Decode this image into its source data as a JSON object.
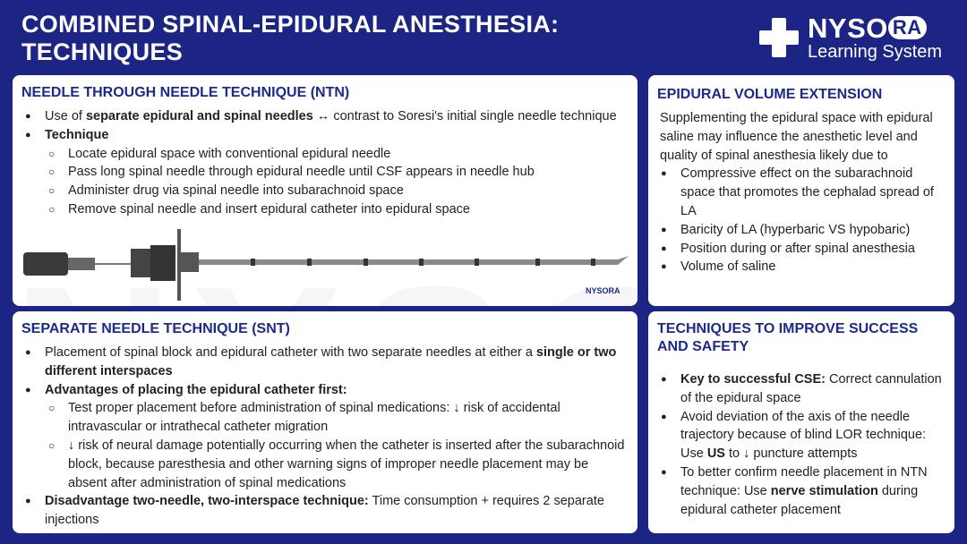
{
  "header": {
    "title_line1": "COMBINED SPINAL-EPIDURAL ANESTHESIA:",
    "title_line2": "TECHNIQUES",
    "logo_brand": "NYSO",
    "logo_ra": "RA",
    "logo_sub": "Learning System"
  },
  "watermark": "NYSORA",
  "ntn": {
    "heading": "NEEDLE THROUGH NEEDLE TECHNIQUE (NTN)",
    "b1_pre": "Use of ",
    "b1_bold": "separate epidural and spinal needles",
    "b1_post": " ↔ contrast to Soresi's initial single needle technique",
    "b2": "Technique",
    "sub": [
      "Locate epidural space with conventional epidural needle",
      "Pass long spinal needle through epidural needle until CSF appears in needle hub",
      "Administer drug via spinal needle into subarachnoid space",
      "Remove spinal needle and insert epidural catheter into epidural space"
    ],
    "image_logo": "NYSORA"
  },
  "eve": {
    "heading": "EPIDURAL VOLUME EXTENSION",
    "intro": "Supplementing the epidural space with epidural saline may influence the anesthetic level and quality of spinal anesthesia likely due to",
    "items": [
      "Compressive effect on the subarachnoid space that promotes the cephalad spread of LA",
      "Baricity of LA (hyperbaric VS hypobaric)",
      "Position during or after spinal anesthesia",
      "Volume of saline"
    ]
  },
  "snt": {
    "heading": "SEPARATE NEEDLE TECHNIQUE (SNT)",
    "b1_pre": "Placement of spinal block and epidural catheter with two separate needles at either a ",
    "b1_bold": "single or two different interspaces",
    "b2": "Advantages of placing the epidural catheter first:",
    "sub": [
      "Test proper placement before administration of spinal medications: ↓ risk of accidental intravascular or intrathecal catheter migration",
      "↓ risk of neural damage potentially occurring when the catheter is inserted after the subarachnoid block, because paresthesia and other warning signs of improper needle placement may be absent after administration of spinal medications"
    ],
    "b3_bold": "Disadvantage two-needle, two-interspace technique:",
    "b3_post": " Time consumption + requires 2 separate injections"
  },
  "tips": {
    "heading": "TECHNIQUES TO IMPROVE SUCCESS AND SAFETY",
    "t1_bold": "Key to successful CSE:",
    "t1_post": " Correct cannulation of the epidural space",
    "t2_pre": "Avoid deviation of the axis of the needle trajectory because of blind LOR technique: Use ",
    "t2_bold": "US",
    "t2_post": " to ↓ puncture attempts",
    "t3_pre": "To better confirm needle placement in NTN technique: Use ",
    "t3_bold": "nerve stimulation",
    "t3_post": " during epidural catheter placement"
  },
  "colors": {
    "background": "#1c2584",
    "heading": "#1c2a8c",
    "panel": "#ffffff"
  }
}
